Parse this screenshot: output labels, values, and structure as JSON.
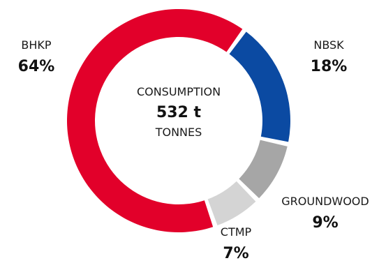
{
  "chart_data": {
    "type": "pie",
    "donut": true,
    "center": {
      "label": "CONSUMPTION",
      "value": "532 t",
      "unit": "TONNES"
    },
    "slices": [
      {
        "name": "NBSK",
        "percent_label": "18%",
        "value": 18,
        "color": "#0b4aa2"
      },
      {
        "name": "GROUNDWOOD",
        "percent_label": "9%",
        "value": 9,
        "color": "#a6a6a6"
      },
      {
        "name": "CTMP",
        "percent_label": "7%",
        "value": 7,
        "color": "#d4d4d4"
      },
      {
        "name": "BHKP",
        "percent_label": "64%",
        "value": 64,
        "color": "#e2002a"
      }
    ]
  }
}
